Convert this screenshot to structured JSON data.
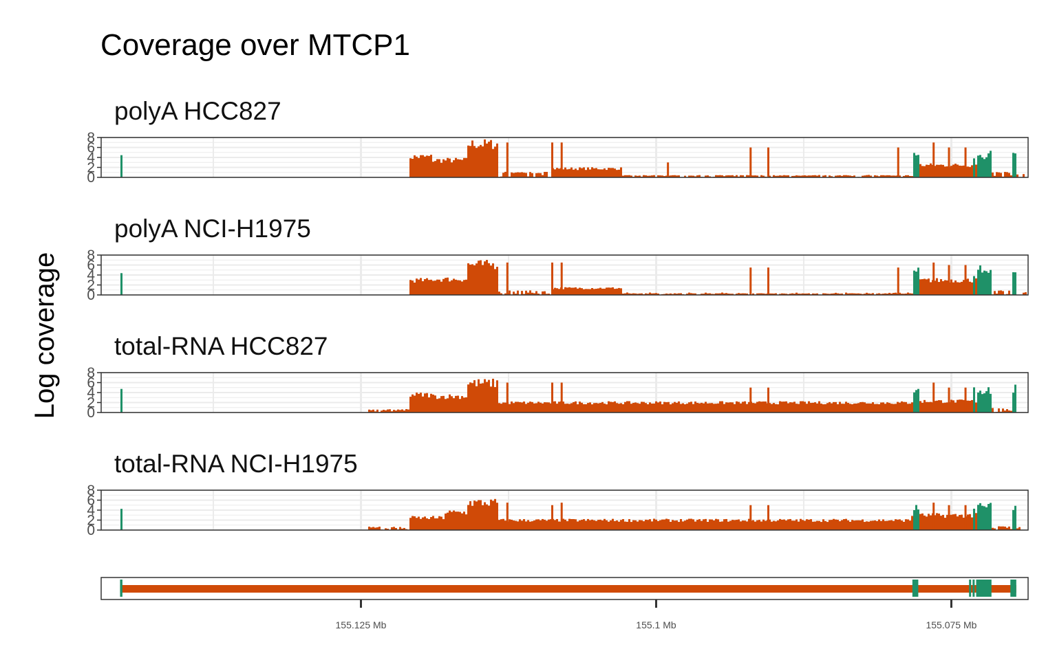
{
  "colors": {
    "intron": "#d04a07",
    "exon": "#1f9168",
    "grid": "#ebebeb",
    "frame": "#333333"
  },
  "chart_data": {
    "type": "area",
    "title": "Coverage over MTCP1",
    "ylabel": "Log coverage",
    "x_axis": {
      "range_bp": [
        155147000,
        155068500
      ],
      "ticks": [
        155125000,
        155100000,
        155075000
      ],
      "tick_labels": [
        "155.125 Mb",
        "155.1 Mb",
        "155.075 Mb"
      ]
    },
    "y_axis": {
      "range": [
        0,
        8
      ],
      "ticks": [
        0,
        2,
        4,
        6,
        8
      ],
      "tick_labels": [
        "0",
        "2",
        "4",
        "6",
        "8"
      ]
    },
    "exons_bp": [
      [
        155145400,
        155145200
      ],
      [
        155078300,
        155077800
      ],
      [
        155073500,
        155073400
      ],
      [
        155073200,
        155073100
      ],
      [
        155072900,
        155071600
      ],
      [
        155070000,
        155069500
      ]
    ],
    "panels": [
      {
        "name": "polyA HCC827",
        "segments": [
          {
            "bp": [
              155121000,
              155119000
            ],
            "level": 4.2
          },
          {
            "bp": [
              155119000,
              155116000
            ],
            "level": 3.5
          },
          {
            "bp": [
              155116000,
              155113500
            ],
            "level": 6.8
          },
          {
            "bp": [
              155113500,
              155109000
            ],
            "level": 1.0
          },
          {
            "bp": [
              155109000,
              155103000
            ],
            "level": 1.8
          },
          {
            "bp": [
              155103000,
              155078000
            ],
            "level": 0.4
          },
          {
            "bp": [
              155078000,
              155072000
            ],
            "level": 2.5
          },
          {
            "bp": [
              155072000,
              155069800
            ],
            "level": 1.0
          }
        ],
        "spikes": [
          {
            "bp": 155112600,
            "level": 7.0
          },
          {
            "bp": 155108800,
            "level": 7.0
          },
          {
            "bp": 155108000,
            "level": 7.0
          },
          {
            "bp": 155099000,
            "level": 3.0
          },
          {
            "bp": 155092000,
            "level": 6.0
          },
          {
            "bp": 155090500,
            "level": 6.0
          },
          {
            "bp": 155079500,
            "level": 6.0
          },
          {
            "bp": 155076500,
            "level": 7.0
          },
          {
            "bp": 155075200,
            "level": 6.0
          },
          {
            "bp": 155073800,
            "level": 6.0
          }
        ]
      },
      {
        "name": "polyA NCI-H1975",
        "segments": [
          {
            "bp": [
              155121000,
              155119000
            ],
            "level": 3.0
          },
          {
            "bp": [
              155119000,
              155116000
            ],
            "level": 3.2
          },
          {
            "bp": [
              155116000,
              155113500
            ],
            "level": 6.2
          },
          {
            "bp": [
              155113500,
              155109000
            ],
            "level": 0.8
          },
          {
            "bp": [
              155109000,
              155103000
            ],
            "level": 1.4
          },
          {
            "bp": [
              155103000,
              155078000
            ],
            "level": 0.3
          },
          {
            "bp": [
              155078000,
              155072000
            ],
            "level": 3.0
          },
          {
            "bp": [
              155072000,
              155069800
            ],
            "level": 0.8
          }
        ],
        "spikes": [
          {
            "bp": 155112600,
            "level": 6.5
          },
          {
            "bp": 155108800,
            "level": 6.5
          },
          {
            "bp": 155108000,
            "level": 6.5
          },
          {
            "bp": 155092000,
            "level": 5.5
          },
          {
            "bp": 155090500,
            "level": 5.5
          },
          {
            "bp": 155079500,
            "level": 5.5
          },
          {
            "bp": 155076500,
            "level": 6.5
          },
          {
            "bp": 155075200,
            "level": 6.0
          },
          {
            "bp": 155073800,
            "level": 6.0
          }
        ]
      },
      {
        "name": "total-RNA HCC827",
        "segments": [
          {
            "bp": [
              155124500,
              155121000
            ],
            "level": 0.6
          },
          {
            "bp": [
              155121000,
              155119000
            ],
            "level": 3.6
          },
          {
            "bp": [
              155119000,
              155116000
            ],
            "level": 3.3
          },
          {
            "bp": [
              155116000,
              155113500
            ],
            "level": 6.0
          },
          {
            "bp": [
              155113500,
              155078500
            ],
            "level": 2.0
          },
          {
            "bp": [
              155078500,
              155072000
            ],
            "level": 2.3
          },
          {
            "bp": [
              155072000,
              155069800
            ],
            "level": 0.8
          }
        ],
        "spikes": [
          {
            "bp": 155112600,
            "level": 6.0
          },
          {
            "bp": 155108800,
            "level": 6.0
          },
          {
            "bp": 155108000,
            "level": 6.0
          },
          {
            "bp": 155092000,
            "level": 5.0
          },
          {
            "bp": 155090500,
            "level": 5.0
          },
          {
            "bp": 155076500,
            "level": 6.0
          },
          {
            "bp": 155075200,
            "level": 5.0
          },
          {
            "bp": 155073800,
            "level": 5.0
          }
        ]
      },
      {
        "name": "total-RNA NCI-H1975",
        "segments": [
          {
            "bp": [
              155124500,
              155121000
            ],
            "level": 0.6
          },
          {
            "bp": [
              155121000,
              155118000
            ],
            "level": 2.5
          },
          {
            "bp": [
              155118000,
              155116000
            ],
            "level": 3.6
          },
          {
            "bp": [
              155116000,
              155113500
            ],
            "level": 5.6
          },
          {
            "bp": [
              155113500,
              155078500
            ],
            "level": 2.0
          },
          {
            "bp": [
              155078500,
              155072000
            ],
            "level": 3.0
          },
          {
            "bp": [
              155072000,
              155069800
            ],
            "level": 0.8
          }
        ],
        "spikes": [
          {
            "bp": 155112600,
            "level": 5.5
          },
          {
            "bp": 155108800,
            "level": 5.0
          },
          {
            "bp": 155108000,
            "level": 5.5
          },
          {
            "bp": 155092000,
            "level": 5.0
          },
          {
            "bp": 155090500,
            "level": 5.0
          },
          {
            "bp": 155076500,
            "level": 5.5
          },
          {
            "bp": 155075200,
            "level": 5.0
          },
          {
            "bp": 155073800,
            "level": 5.0
          }
        ]
      }
    ]
  }
}
